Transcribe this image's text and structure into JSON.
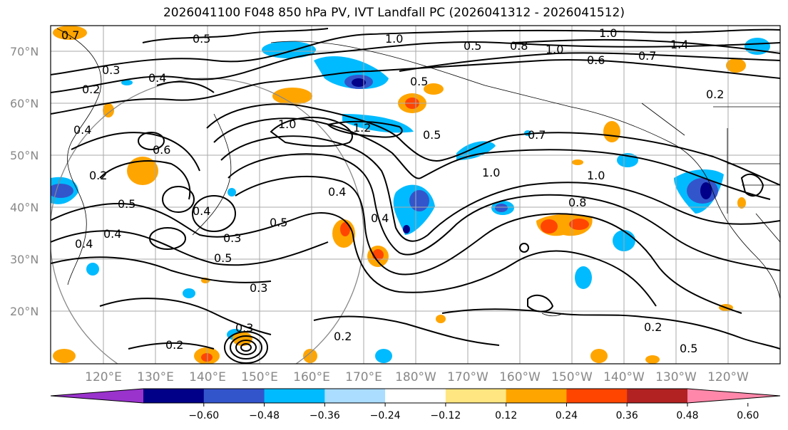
{
  "title": "2026041100 F048 850 hPa PV, IVT Landfall PC (2026041312 - 2026041512)",
  "lat_labels": [
    "70°N",
    "60°N",
    "50°N",
    "40°N",
    "30°N",
    "20°N"
  ],
  "lon_labels": [
    "120°E",
    "130°E",
    "140°E",
    "150°E",
    "160°E",
    "170°E",
    "180°W",
    "170°W",
    "160°W",
    "150°W",
    "140°W",
    "130°W",
    "120°W"
  ],
  "colorbar": {
    "colors": [
      "#9933cc",
      "#000088",
      "#3355cc",
      "#00bbff",
      "#aaddff",
      "#ffffff",
      "#ffe680",
      "#ffa500",
      "#ff4500",
      "#b22222",
      "#ff88aa"
    ],
    "ticks": [
      "−0.60",
      "−0.48",
      "−0.36",
      "−0.24",
      "−0.12",
      "0.12",
      "0.24",
      "0.36",
      "0.48",
      "0.60"
    ]
  },
  "contour_labels": [
    "0.7",
    "0.5",
    "1.0",
    "0.5",
    "1.0",
    "0.8",
    "1.0",
    "1.4",
    "0.7",
    "0.4",
    "0.3",
    "0.2",
    "0.4",
    "0.6",
    "0.5",
    "1.0",
    "1.2",
    "0.5",
    "0.7",
    "0.2",
    "0.4",
    "0.2",
    "0.5",
    "0.4",
    "0.4",
    "0.6",
    "0.5",
    "0.4",
    "0.3",
    "0.5",
    "0.4",
    "1.0",
    "1.0",
    "0.8",
    "0.3",
    "0.2",
    "0.2",
    "0.3",
    "0.2",
    "0.5"
  ]
}
